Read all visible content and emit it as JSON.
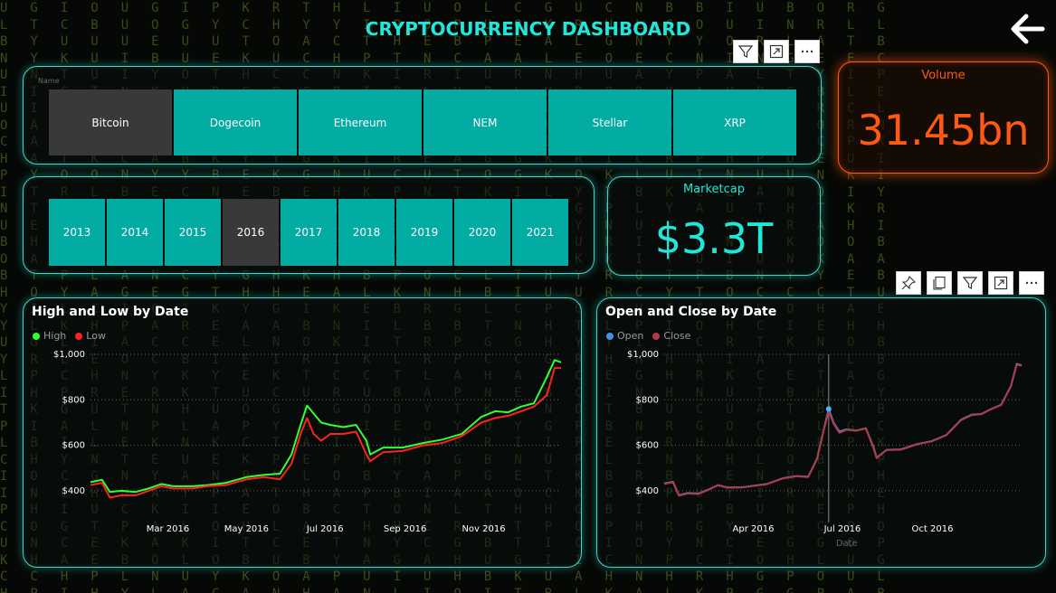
{
  "title": "CRYPTOCURRENCY DASHBOARD",
  "name_slicer": {
    "label": "Name",
    "items": [
      "Bitcoin",
      "Dogecoin",
      "Ethereum",
      "NEM",
      "Stellar",
      "XRP"
    ],
    "selected": "Bitcoin"
  },
  "year_slicer": {
    "items": [
      "2013",
      "2014",
      "2015",
      "2016",
      "2017",
      "2018",
      "2019",
      "2020",
      "2021"
    ],
    "selected": "2016"
  },
  "marketcap": {
    "label": "Marketcap",
    "value": "$3.3T"
  },
  "volume": {
    "label": "Volume",
    "value": "31.45bn"
  },
  "colors": {
    "accent": "#21e6da",
    "tile": "#02aca2",
    "tile_selected": "#393939",
    "volume": "#ff5a14",
    "high": "#33ff33",
    "low": "#ff2020",
    "open": "#4a90e2",
    "close": "#b03a48"
  },
  "icons": {
    "back": "back-arrow-icon",
    "filter": "filter-icon",
    "focus": "focus-mode-icon",
    "more": "more-options-icon",
    "pin": "pin-icon",
    "copy": "copy-icon"
  },
  "chart_data": [
    {
      "type": "line",
      "title": "High and Low by Date",
      "xlabel": "",
      "ylabel": "",
      "x_ticks": [
        "Mar 2016",
        "May 2016",
        "Jul 2016",
        "Sep 2016",
        "Nov 2016"
      ],
      "y_ticks": [
        "$400",
        "$600",
        "$800",
        "$1,000"
      ],
      "ylim": [
        340,
        1000
      ],
      "xlim": [
        "2016-01-01",
        "2016-12-31"
      ],
      "grid": true,
      "legend": "top-left",
      "x": [
        "2016-01-01",
        "2016-01-10",
        "2016-01-16",
        "2016-01-25",
        "2016-02-05",
        "2016-02-15",
        "2016-02-25",
        "2016-03-05",
        "2016-03-20",
        "2016-04-01",
        "2016-04-15",
        "2016-05-01",
        "2016-05-15",
        "2016-05-27",
        "2016-06-05",
        "2016-06-12",
        "2016-06-17",
        "2016-06-22",
        "2016-06-28",
        "2016-07-05",
        "2016-07-15",
        "2016-07-25",
        "2016-08-02",
        "2016-08-05",
        "2016-08-15",
        "2016-08-30",
        "2016-09-15",
        "2016-09-30",
        "2016-10-15",
        "2016-10-30",
        "2016-11-10",
        "2016-11-20",
        "2016-11-30",
        "2016-12-10",
        "2016-12-20",
        "2016-12-26",
        "2016-12-31"
      ],
      "series": [
        {
          "name": "High",
          "values": [
            438,
            448,
            395,
            400,
            395,
            410,
            430,
            420,
            420,
            425,
            435,
            460,
            470,
            475,
            560,
            690,
            775,
            740,
            700,
            690,
            680,
            690,
            620,
            560,
            590,
            590,
            610,
            625,
            650,
            725,
            750,
            745,
            770,
            785,
            900,
            975,
            965
          ]
        },
        {
          "name": "Low",
          "values": [
            425,
            435,
            370,
            380,
            380,
            400,
            420,
            410,
            410,
            420,
            425,
            450,
            460,
            450,
            520,
            650,
            720,
            650,
            620,
            650,
            650,
            660,
            560,
            530,
            570,
            575,
            600,
            610,
            640,
            700,
            720,
            730,
            750,
            770,
            820,
            940,
            940
          ]
        }
      ]
    },
    {
      "type": "line",
      "title": "Open and Close by Date",
      "xlabel": "Date",
      "ylabel": "",
      "x_ticks": [
        "Apr 2016",
        "Jul 2016",
        "Oct 2016"
      ],
      "y_ticks": [
        "$400",
        "$600",
        "$800",
        "$1,000"
      ],
      "ylim": [
        340,
        1000
      ],
      "xlim": [
        "2016-01-01",
        "2016-12-31"
      ],
      "grid": true,
      "legend": "top-left",
      "highlight_x": "2016-06-17",
      "x": [
        "2016-01-01",
        "2016-01-10",
        "2016-01-16",
        "2016-01-25",
        "2016-02-05",
        "2016-02-15",
        "2016-02-25",
        "2016-03-05",
        "2016-03-20",
        "2016-04-01",
        "2016-04-15",
        "2016-05-01",
        "2016-05-15",
        "2016-05-27",
        "2016-06-05",
        "2016-06-12",
        "2016-06-17",
        "2016-06-22",
        "2016-06-28",
        "2016-07-05",
        "2016-07-15",
        "2016-07-25",
        "2016-08-02",
        "2016-08-05",
        "2016-08-15",
        "2016-08-30",
        "2016-09-15",
        "2016-09-30",
        "2016-10-15",
        "2016-10-30",
        "2016-11-10",
        "2016-11-20",
        "2016-11-30",
        "2016-12-10",
        "2016-12-20",
        "2016-12-26",
        "2016-12-31"
      ],
      "series": [
        {
          "name": "Open",
          "values": [
            432,
            440,
            380,
            390,
            388,
            405,
            425,
            415,
            415,
            422,
            430,
            455,
            465,
            462,
            540,
            670,
            760,
            700,
            660,
            670,
            665,
            675,
            590,
            545,
            580,
            582,
            605,
            618,
            645,
            712,
            735,
            738,
            760,
            778,
            860,
            958,
            952
          ]
        },
        {
          "name": "Close",
          "values": [
            430,
            438,
            378,
            388,
            386,
            404,
            424,
            414,
            414,
            421,
            429,
            454,
            464,
            460,
            538,
            668,
            750,
            695,
            655,
            668,
            664,
            674,
            585,
            543,
            579,
            581,
            604,
            617,
            644,
            710,
            733,
            737,
            759,
            777,
            858,
            955,
            950
          ]
        }
      ]
    }
  ]
}
